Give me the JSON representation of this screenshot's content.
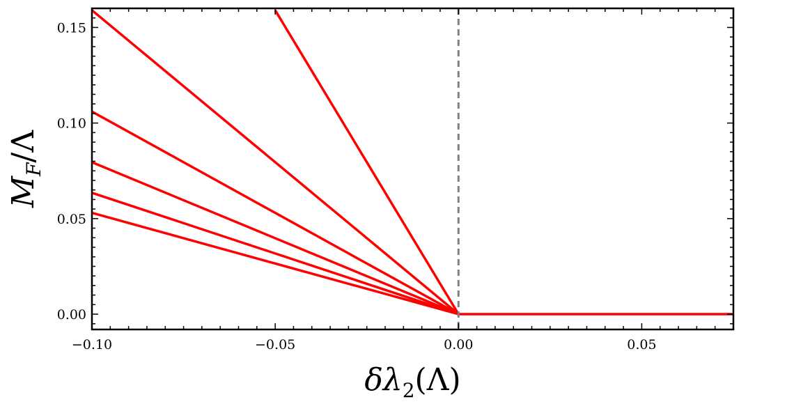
{
  "chart_data": {
    "type": "line",
    "title": "",
    "xlabel": {
      "base": "δλ",
      "sub": "2",
      "rest": "(Λ)"
    },
    "ylabel": {
      "base": "M",
      "sub": "F",
      "rest": "/Λ"
    },
    "xlim": [
      -0.1,
      0.075
    ],
    "ylim": [
      -0.008,
      0.16
    ],
    "x_ticks": [
      -0.1,
      -0.05,
      0.0,
      0.05
    ],
    "x_tick_labels": [
      "−0.10",
      "−0.05",
      "0.00",
      "0.05"
    ],
    "y_ticks": [
      0.0,
      0.05,
      0.1,
      0.15
    ],
    "y_tick_labels": [
      "0.00",
      "0.05",
      "0.10",
      "0.15"
    ],
    "grid": false,
    "line_color": "#ff0000",
    "marker_line_color": "#808080",
    "vertical_marker_x": 0.0,
    "series": [
      {
        "x": [
          -0.1,
          0.0
        ],
        "y": [
          0.053,
          0.0
        ]
      },
      {
        "x": [
          -0.1,
          0.0
        ],
        "y": [
          0.0635,
          0.0
        ]
      },
      {
        "x": [
          -0.1,
          0.0
        ],
        "y": [
          0.0795,
          0.0
        ]
      },
      {
        "x": [
          -0.1,
          0.0
        ],
        "y": [
          0.106,
          0.0
        ]
      },
      {
        "x": [
          -0.1,
          0.0
        ],
        "y": [
          0.159,
          0.0
        ]
      },
      {
        "x": [
          -0.05,
          0.0
        ],
        "y": [
          0.159,
          0.0
        ]
      },
      {
        "x": [
          0.0,
          0.075
        ],
        "y": [
          0.0,
          0.0
        ]
      }
    ]
  }
}
